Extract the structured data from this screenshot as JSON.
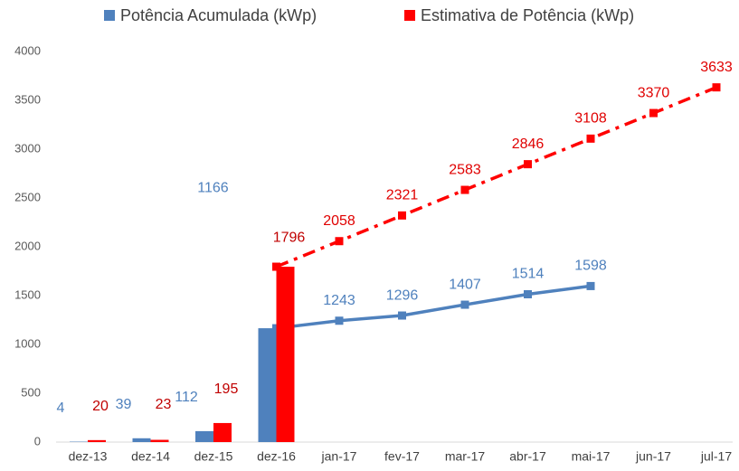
{
  "chart_data": {
    "type": "combo",
    "categories": [
      "dez-13",
      "dez-14",
      "dez-15",
      "dez-16",
      "jan-17",
      "fev-17",
      "mar-17",
      "abr-17",
      "mai-17",
      "jun-17",
      "jul-17"
    ],
    "kinds": [
      "bar",
      "bar",
      "bar",
      "bar line",
      "line",
      "line",
      "line",
      "line",
      "line",
      "line",
      "line"
    ],
    "series": [
      {
        "name": "Potência Acumulada (kWp)",
        "color": "#4f81bd",
        "dash": "solid",
        "values": [
          4,
          39,
          112,
          1166,
          1243,
          1296,
          1407,
          1514,
          1598,
          null,
          null
        ]
      },
      {
        "name": "Estimativa de Potência (kWp)",
        "color": "#ff0000",
        "dash": "dashdot",
        "values": [
          20,
          23,
          195,
          1796,
          2058,
          2321,
          2583,
          2846,
          3108,
          3370,
          3633
        ]
      }
    ],
    "ylim": [
      0,
      4000
    ],
    "yticks": [
      0,
      500,
      1000,
      1500,
      2000,
      2500,
      3000,
      3500,
      4000
    ],
    "grid": false,
    "legend": "top"
  }
}
